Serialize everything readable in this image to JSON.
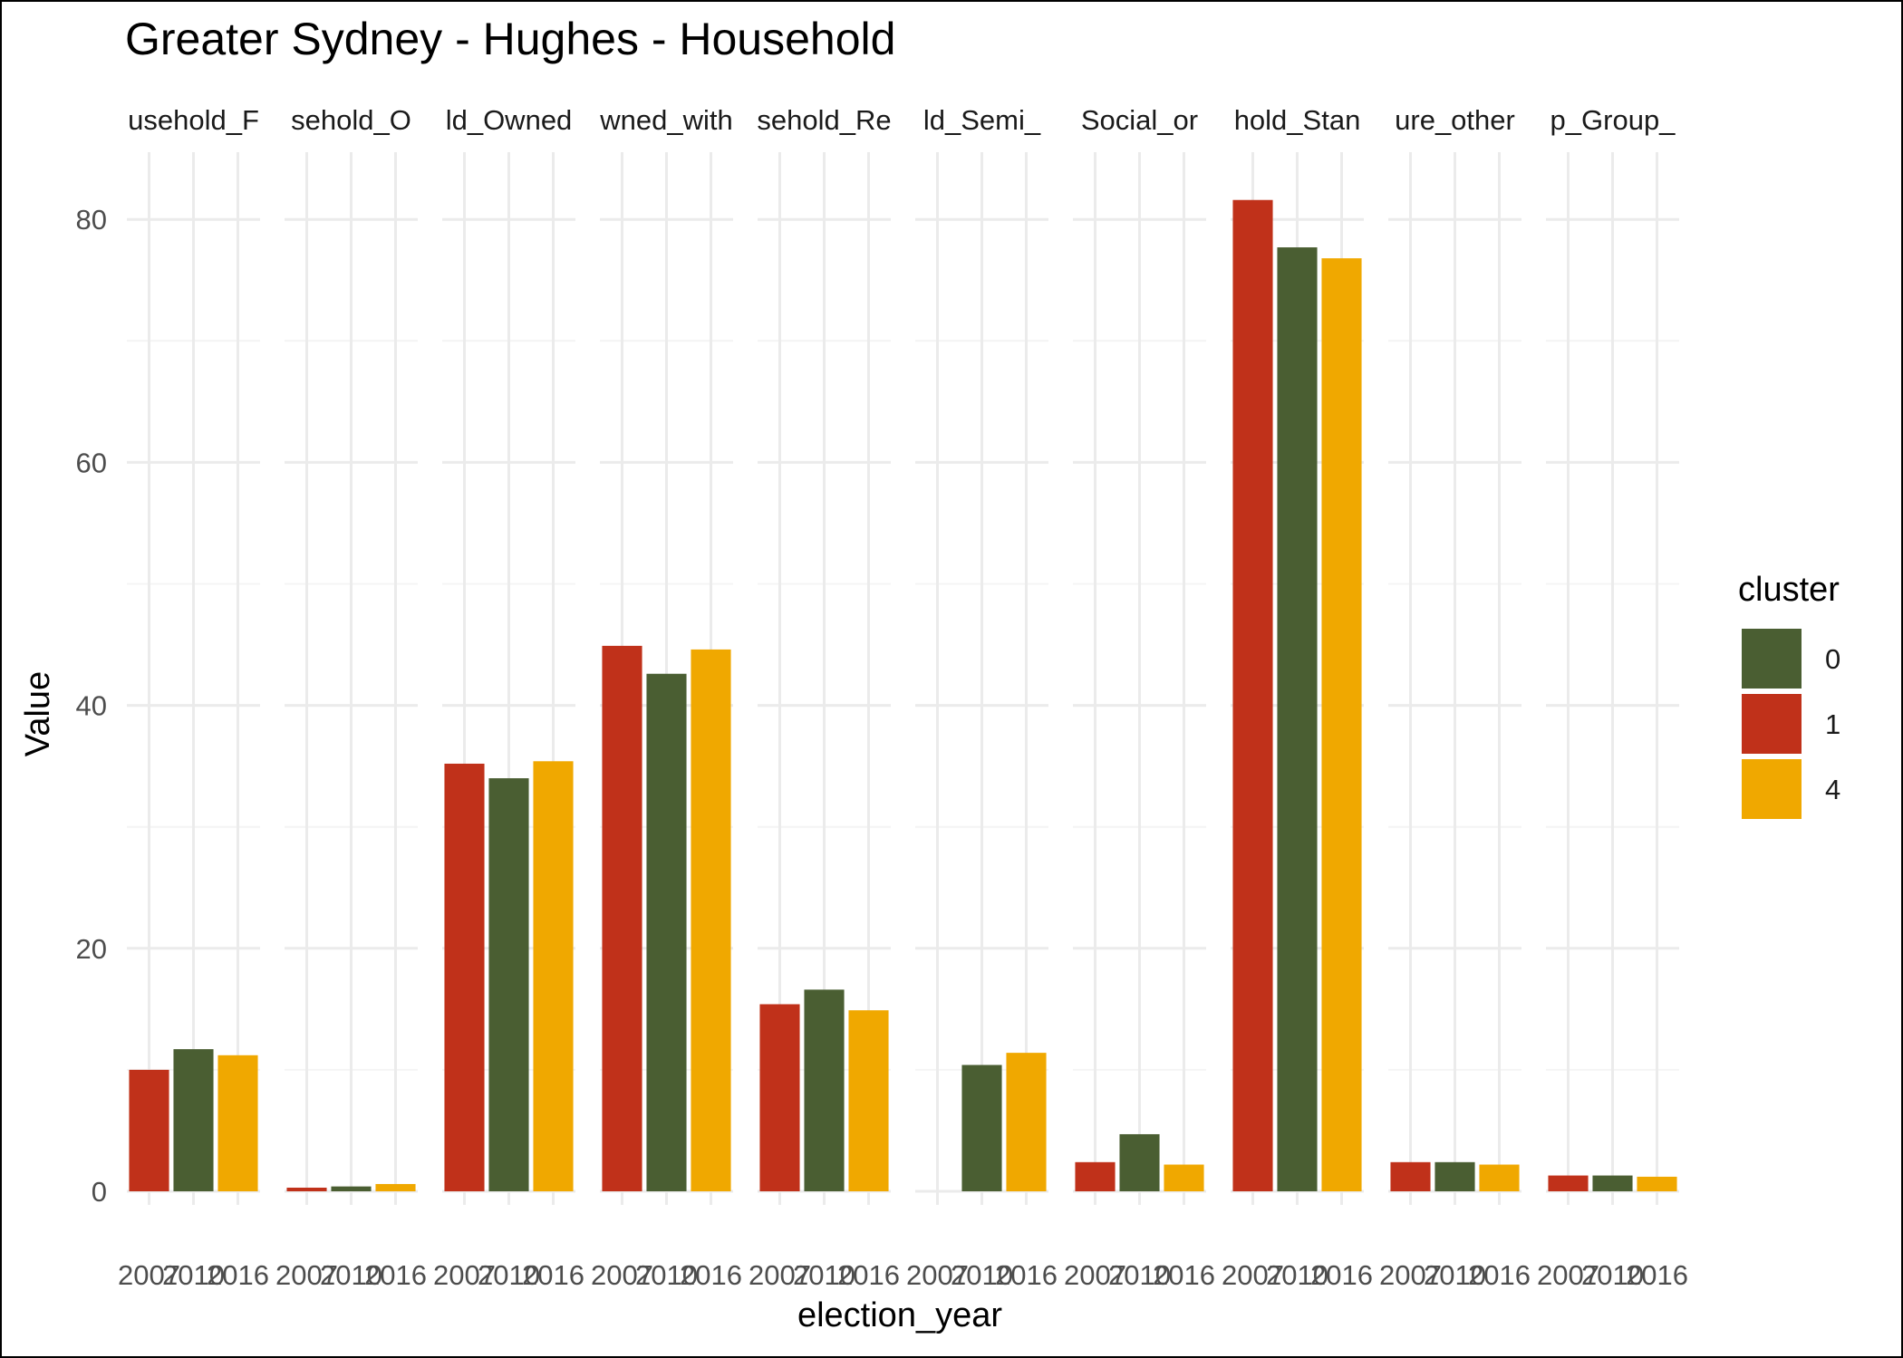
{
  "chart_data": {
    "type": "bar",
    "title": "Greater Sydney - Hughes - Household",
    "xlabel": "election_year",
    "ylabel": "Value",
    "ylim": [
      0,
      85
    ],
    "y_ticks": [
      0,
      20,
      40,
      60,
      80
    ],
    "x_categories": [
      "2007",
      "2010",
      "2016"
    ],
    "grid": true,
    "legend": {
      "title": "cluster",
      "position": "right",
      "entries": [
        {
          "label": "0",
          "color": "#4a5e32"
        },
        {
          "label": "1",
          "color": "#c0311a"
        },
        {
          "label": "4",
          "color": "#f0a800"
        }
      ]
    },
    "facets": [
      {
        "label": "usehold_F",
        "bars": [
          {
            "year": "2007",
            "cluster": "1",
            "value": 10.0
          },
          {
            "year": "2010",
            "cluster": "0",
            "value": 11.7
          },
          {
            "year": "2016",
            "cluster": "4",
            "value": 11.2
          }
        ]
      },
      {
        "label": "sehold_O",
        "bars": [
          {
            "year": "2007",
            "cluster": "1",
            "value": 0.3
          },
          {
            "year": "2010",
            "cluster": "0",
            "value": 0.4
          },
          {
            "year": "2016",
            "cluster": "4",
            "value": 0.6
          }
        ]
      },
      {
        "label": "ld_Owned",
        "bars": [
          {
            "year": "2007",
            "cluster": "1",
            "value": 35.2
          },
          {
            "year": "2010",
            "cluster": "0",
            "value": 34.0
          },
          {
            "year": "2016",
            "cluster": "4",
            "value": 35.4
          }
        ]
      },
      {
        "label": "wned_with",
        "bars": [
          {
            "year": "2007",
            "cluster": "1",
            "value": 44.9
          },
          {
            "year": "2010",
            "cluster": "0",
            "value": 42.6
          },
          {
            "year": "2016",
            "cluster": "4",
            "value": 44.6
          }
        ]
      },
      {
        "label": "sehold_Re",
        "bars": [
          {
            "year": "2007",
            "cluster": "1",
            "value": 15.4
          },
          {
            "year": "2010",
            "cluster": "0",
            "value": 16.6
          },
          {
            "year": "2016",
            "cluster": "4",
            "value": 14.9
          }
        ]
      },
      {
        "label": "ld_Semi_",
        "bars": [
          {
            "year": "2010",
            "cluster": "0",
            "value": 10.4
          },
          {
            "year": "2016",
            "cluster": "4",
            "value": 11.4
          }
        ]
      },
      {
        "label": "Social_or",
        "bars": [
          {
            "year": "2007",
            "cluster": "1",
            "value": 2.4
          },
          {
            "year": "2010",
            "cluster": "0",
            "value": 4.7
          },
          {
            "year": "2016",
            "cluster": "4",
            "value": 2.2
          }
        ]
      },
      {
        "label": "hold_Stan",
        "bars": [
          {
            "year": "2007",
            "cluster": "1",
            "value": 81.6
          },
          {
            "year": "2010",
            "cluster": "0",
            "value": 77.7
          },
          {
            "year": "2016",
            "cluster": "4",
            "value": 76.8
          }
        ]
      },
      {
        "label": "ure_other",
        "bars": [
          {
            "year": "2007",
            "cluster": "1",
            "value": 2.4
          },
          {
            "year": "2010",
            "cluster": "0",
            "value": 2.4
          },
          {
            "year": "2016",
            "cluster": "4",
            "value": 2.2
          }
        ]
      },
      {
        "label": "p_Group_",
        "bars": [
          {
            "year": "2007",
            "cluster": "1",
            "value": 1.3
          },
          {
            "year": "2010",
            "cluster": "0",
            "value": 1.3
          },
          {
            "year": "2016",
            "cluster": "4",
            "value": 1.2
          }
        ]
      }
    ]
  }
}
